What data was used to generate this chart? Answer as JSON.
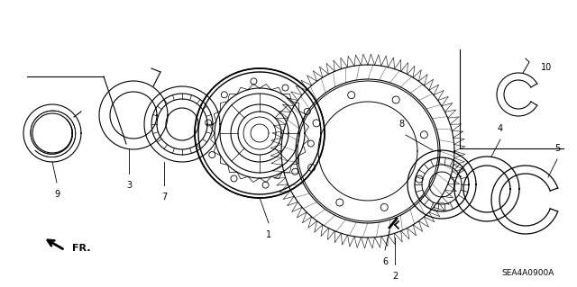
{
  "background_color": "#ffffff",
  "diagram_code": "SEA4A0900A",
  "text_color": "#000000",
  "line_color": "#000000",
  "lw": 0.8,
  "fig_w": 6.4,
  "fig_h": 3.19,
  "dpi": 100
}
